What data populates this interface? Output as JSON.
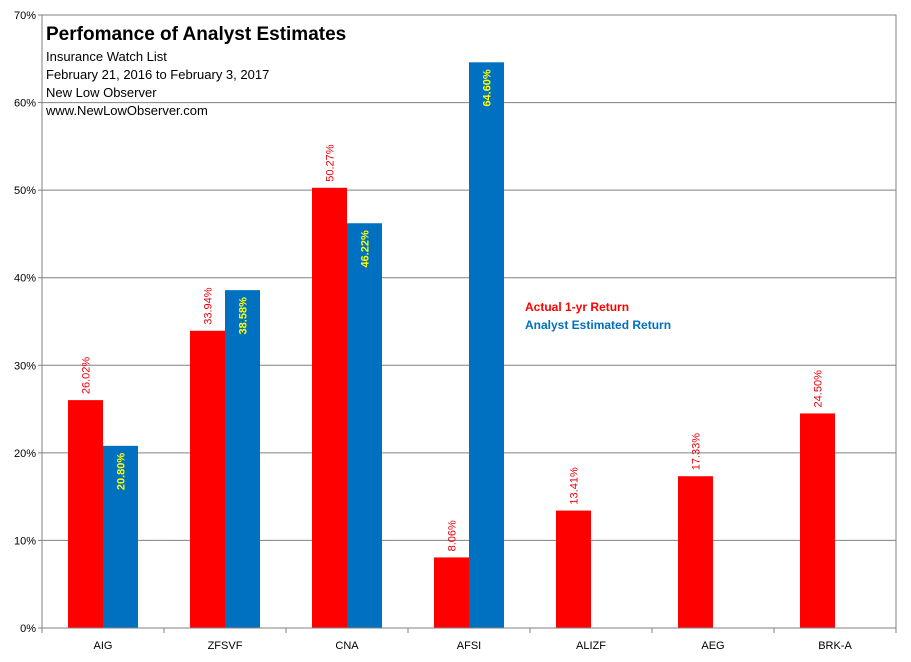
{
  "chart_data": {
    "type": "bar",
    "title": "Perfomance  of Analyst Estimates",
    "subtitle_lines": [
      "Insurance Watch List",
      "February 21, 2016  to February 3, 2017",
      "New Low Observer",
      "www.NewLowObserver.com"
    ],
    "categories": [
      "AIG",
      "ZFSVF",
      "CNA",
      "AFSI",
      "ALIZF",
      "AEG",
      "BRK-A"
    ],
    "series": [
      {
        "name": "Actual 1-yr Return",
        "color": "#ff0000",
        "values": [
          26.02,
          33.94,
          50.27,
          8.06,
          13.41,
          17.33,
          24.5
        ],
        "labels": [
          "26.02%",
          "33.94%",
          "50.27%",
          "8.06%",
          "13.41%",
          "17.33%",
          "24.50%"
        ]
      },
      {
        "name": "Analyst Estimated Return",
        "color": "#0070c0",
        "values": [
          20.8,
          38.58,
          46.22,
          64.6,
          null,
          null,
          null
        ],
        "labels": [
          "20.80%",
          "38.58%",
          "46.22%",
          "64.60%",
          null,
          null,
          null
        ]
      }
    ],
    "y_ticks": [
      0,
      10,
      20,
      30,
      40,
      50,
      60,
      70
    ],
    "y_tick_labels": [
      "0%",
      "10%",
      "20%",
      "30%",
      "40%",
      "50%",
      "60%",
      "70%"
    ],
    "ylim": [
      0,
      70
    ],
    "grid": true,
    "legend_position": "center-right",
    "xlabel": "",
    "ylabel": ""
  }
}
